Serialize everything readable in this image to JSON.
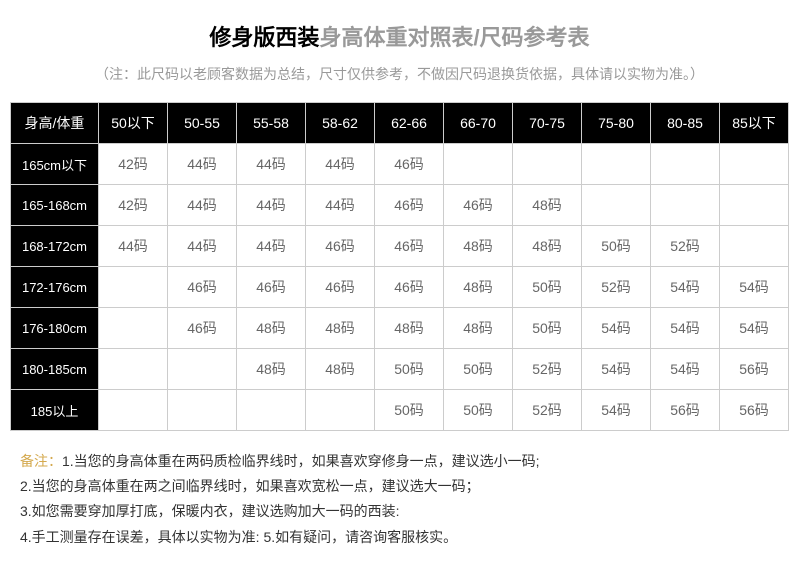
{
  "title": {
    "main": "修身版西装",
    "sub": "身高体重对照表/尺码参考表"
  },
  "subtitle": "（注：此尺码以老顾客数据为总结，尺寸仅供参考，不做因尺码退换货依据，具体请以实物为准。）",
  "table": {
    "header_row_label": "身高/体重",
    "columns": [
      "50以下",
      "50-55",
      "55-58",
      "58-62",
      "62-66",
      "66-70",
      "70-75",
      "75-80",
      "80-85",
      "85以下"
    ],
    "rows": [
      {
        "label": "165cm以下",
        "cells": [
          "42码",
          "44码",
          "44码",
          "44码",
          "46码",
          "",
          "",
          "",
          "",
          ""
        ]
      },
      {
        "label": "165-168cm",
        "cells": [
          "42码",
          "44码",
          "44码",
          "44码",
          "46码",
          "46码",
          "48码",
          "",
          "",
          ""
        ]
      },
      {
        "label": "168-172cm",
        "cells": [
          "44码",
          "44码",
          "44码",
          "46码",
          "46码",
          "48码",
          "48码",
          "50码",
          "52码",
          ""
        ]
      },
      {
        "label": "172-176cm",
        "cells": [
          "",
          "46码",
          "46码",
          "46码",
          "46码",
          "48码",
          "50码",
          "52码",
          "54码",
          "54码"
        ]
      },
      {
        "label": "176-180cm",
        "cells": [
          "",
          "46码",
          "48码",
          "48码",
          "48码",
          "48码",
          "50码",
          "54码",
          "54码",
          "54码"
        ]
      },
      {
        "label": "180-185cm",
        "cells": [
          "",
          "",
          "48码",
          "48码",
          "50码",
          "50码",
          "52码",
          "54码",
          "54码",
          "56码"
        ]
      },
      {
        "label": "185以上",
        "cells": [
          "",
          "",
          "",
          "",
          "50码",
          "50码",
          "52码",
          "54码",
          "56码",
          "56码"
        ]
      }
    ]
  },
  "notes": {
    "label": "备注：",
    "items": [
      "1.当您的身高体重在两码质检临界线时，如果喜欢穿修身一点，建议选小一码;",
      "2.当您的身高体重在两之间临界线时，如果喜欢宽松一点，建议选大一码；",
      "3.如您需要穿加厚打底，保暖内衣，建议选购加大一码的西装:",
      "4.手工测量存在误差，具体以实物为准:  5.如有疑问，请咨询客服核实。"
    ]
  },
  "colors": {
    "header_bg": "#000000",
    "header_text": "#ffffff",
    "cell_text": "#666666",
    "border": "#cccccc",
    "title_gray": "#999999",
    "notes_label": "#d4a94e"
  }
}
